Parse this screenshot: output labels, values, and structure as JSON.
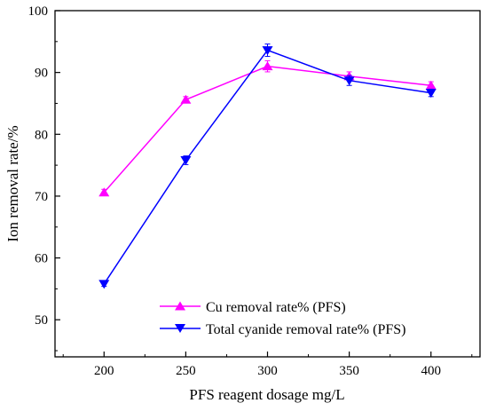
{
  "chart_data": {
    "type": "line",
    "title": "",
    "xlabel": "PFS reagent dosage mg/L",
    "ylabel": "Ion removal rate/%",
    "x": [
      200,
      250,
      300,
      350,
      400
    ],
    "xlim": [
      170,
      430
    ],
    "ylim": [
      44,
      100
    ],
    "xticks": [
      200,
      250,
      300,
      350,
      400
    ],
    "yticks": [
      50,
      60,
      70,
      80,
      90,
      100
    ],
    "grid": false,
    "legend_position": "bottom-right",
    "series": [
      {
        "name": "Cu removal rate% (PFS)",
        "values": [
          70.6,
          85.6,
          91.0,
          89.4,
          87.9
        ],
        "errors": [
          0.5,
          0.5,
          0.9,
          0.7,
          0.6
        ],
        "color": "#ff00ff",
        "marker": "triangle-up"
      },
      {
        "name": "Total cyanide removal rate% (PFS)",
        "values": [
          55.8,
          75.8,
          93.6,
          88.7,
          86.7
        ],
        "errors": [
          0.4,
          0.7,
          1.0,
          0.8,
          0.6
        ],
        "color": "#0000ff",
        "marker": "triangle-down"
      }
    ]
  }
}
